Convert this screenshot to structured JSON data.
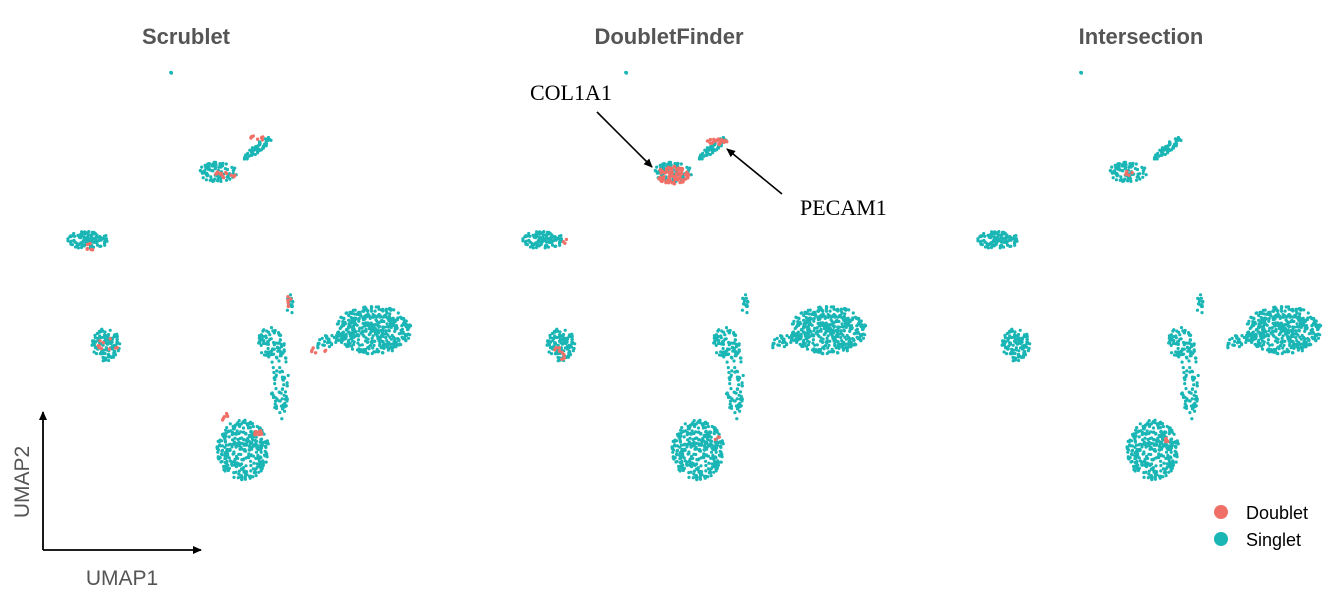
{
  "chart_data": {
    "type": "scatter",
    "xlabel": "UMAP1",
    "ylabel": "UMAP2",
    "colors": {
      "Doublet": "#F07068",
      "Singlet": "#1AB5B5"
    },
    "legend": {
      "placement": "bottom-right",
      "entries": [
        {
          "name": "Doublet",
          "color": "#F07068"
        },
        {
          "name": "Singlet",
          "color": "#1AB5B5"
        }
      ]
    },
    "clusters": [
      {
        "id": "tiny",
        "cx": 172,
        "cy": 74,
        "rx": 2,
        "ry": 2,
        "n": 3
      },
      {
        "id": "diag",
        "cx": 258,
        "cy": 148,
        "rx": 18,
        "ry": 4,
        "n": 60,
        "rot": -38
      },
      {
        "id": "upper",
        "cx": 218,
        "cy": 172,
        "rx": 19,
        "ry": 10,
        "n": 90
      },
      {
        "id": "left",
        "cx": 88,
        "cy": 240,
        "rx": 21,
        "ry": 9,
        "n": 110
      },
      {
        "id": "mid",
        "cx": 106,
        "cy": 345,
        "rx": 14,
        "ry": 17,
        "n": 120
      },
      {
        "id": "big",
        "cx": 373,
        "cy": 330,
        "rx": 39,
        "ry": 24,
        "n": 450
      },
      {
        "id": "streak",
        "cx": 330,
        "cy": 340,
        "rx": 16,
        "ry": 6,
        "n": 40,
        "rot": -25
      },
      {
        "id": "neck",
        "cx": 270,
        "cy": 342,
        "rx": 12,
        "ry": 16,
        "n": 70
      },
      {
        "id": "stem",
        "cx": 280,
        "cy": 380,
        "rx": 9,
        "ry": 42,
        "n": 80
      },
      {
        "id": "low",
        "cx": 243,
        "cy": 450,
        "rx": 26,
        "ry": 30,
        "n": 330
      },
      {
        "id": "topstem",
        "cx": 290,
        "cy": 305,
        "rx": 3,
        "ry": 12,
        "n": 16
      }
    ],
    "panels": [
      {
        "title": "Scrublet",
        "dx": 0,
        "doublets": [
          {
            "cx": 258,
            "cy": 138,
            "rx": 8,
            "ry": 3,
            "n": 8
          },
          {
            "cx": 226,
            "cy": 174,
            "rx": 12,
            "ry": 4,
            "n": 14
          },
          {
            "cx": 90,
            "cy": 247,
            "rx": 10,
            "ry": 4,
            "n": 6
          },
          {
            "cx": 108,
            "cy": 345,
            "rx": 10,
            "ry": 10,
            "n": 10
          },
          {
            "cx": 290,
            "cy": 300,
            "rx": 3,
            "ry": 10,
            "n": 6
          },
          {
            "cx": 258,
            "cy": 433,
            "rx": 5,
            "ry": 3,
            "n": 12
          },
          {
            "cx": 225,
            "cy": 418,
            "rx": 5,
            "ry": 5,
            "n": 6
          },
          {
            "cx": 318,
            "cy": 350,
            "rx": 8,
            "ry": 3,
            "n": 6
          }
        ]
      },
      {
        "title": "DoubletFinder",
        "dx": 455,
        "doublets": [
          {
            "cx": 218,
            "cy": 175,
            "rx": 16,
            "ry": 9,
            "n": 80
          },
          {
            "cx": 262,
            "cy": 142,
            "rx": 11,
            "ry": 3,
            "n": 22
          },
          {
            "cx": 105,
            "cy": 353,
            "rx": 6,
            "ry": 8,
            "n": 10
          },
          {
            "cx": 110,
            "cy": 242,
            "rx": 4,
            "ry": 3,
            "n": 3
          },
          {
            "cx": 262,
            "cy": 438,
            "rx": 3,
            "ry": 2,
            "n": 4
          }
        ]
      },
      {
        "title": "Intersection",
        "dx": 910,
        "doublets": [
          {
            "cx": 220,
            "cy": 173,
            "rx": 6,
            "ry": 3,
            "n": 5
          },
          {
            "cx": 257,
            "cy": 440,
            "rx": 3,
            "ry": 2,
            "n": 5
          }
        ]
      }
    ],
    "annotations": [
      {
        "text": "COL1A1",
        "target_cluster": "upper",
        "panel": "DoubletFinder"
      },
      {
        "text": "PECAM1",
        "target_cluster": "diag",
        "panel": "DoubletFinder"
      }
    ]
  }
}
